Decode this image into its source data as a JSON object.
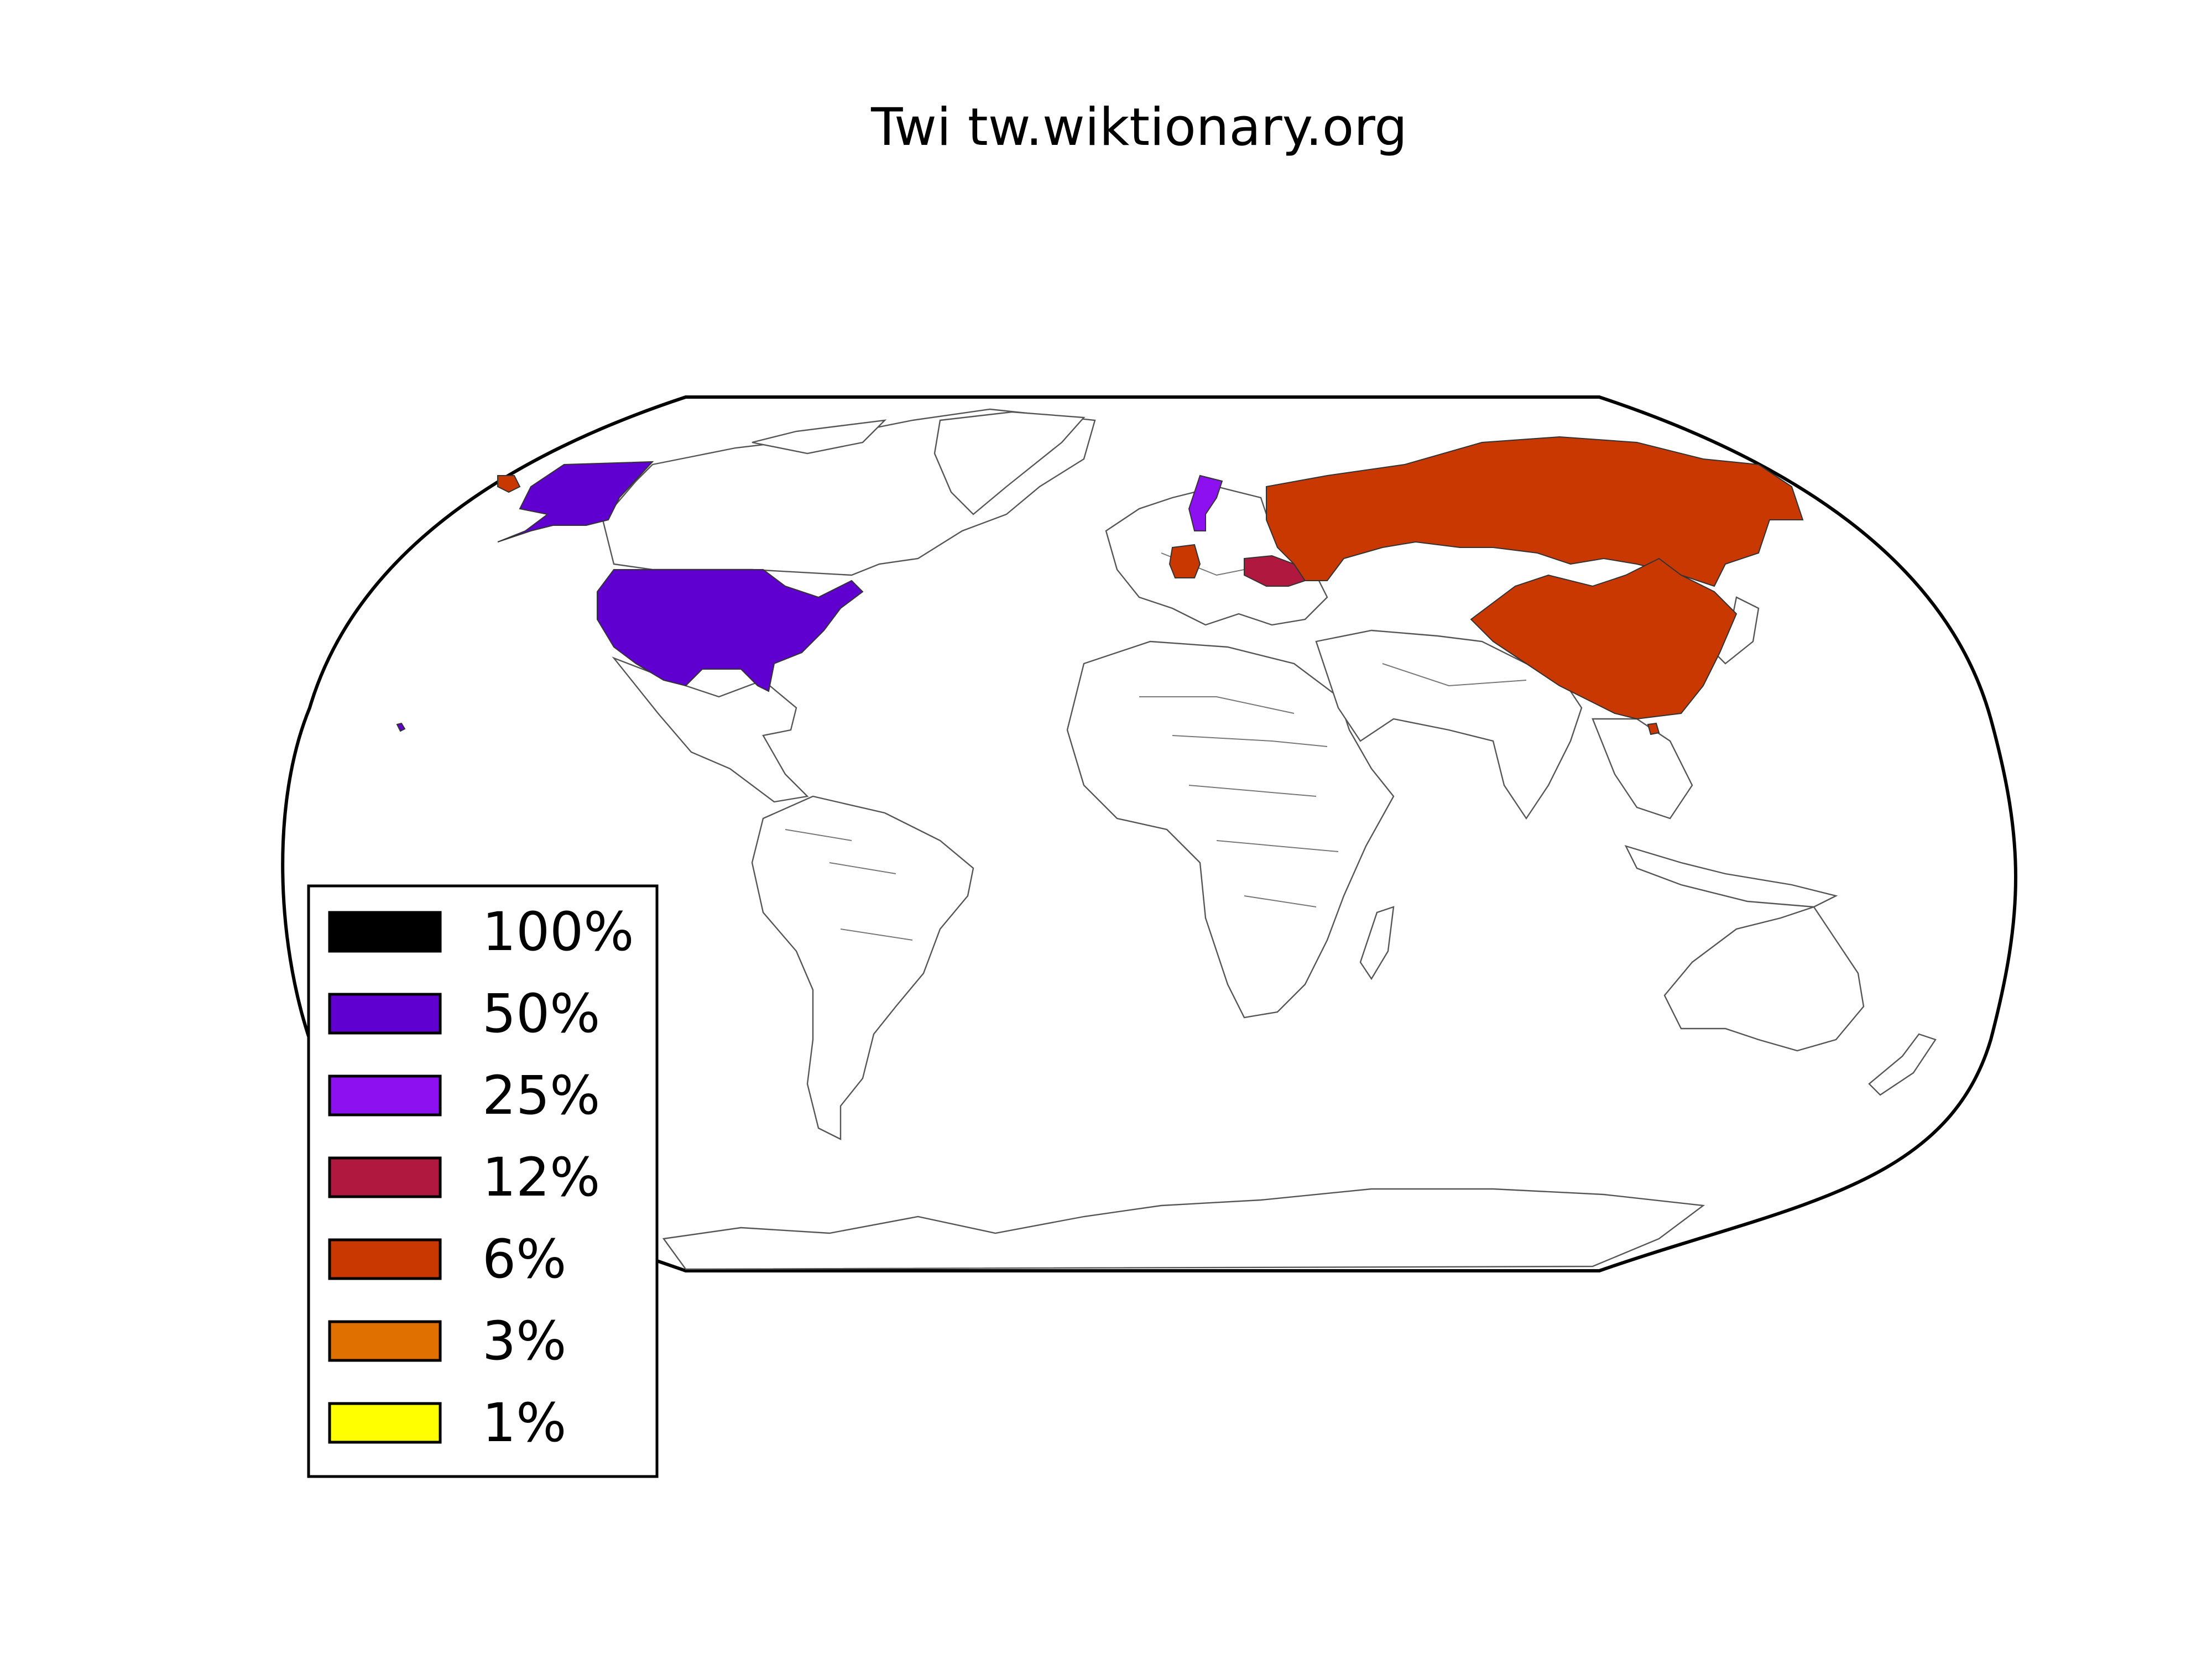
{
  "title": "Twi tw.wiktionary.org",
  "legend": [
    {
      "label": "100%",
      "color": "#000000"
    },
    {
      "label": "50%",
      "color": "#6000d0"
    },
    {
      "label": "25%",
      "color": "#8c10f0"
    },
    {
      "label": "12%",
      "color": "#b01840"
    },
    {
      "label": "6%",
      "color": "#c83800"
    },
    {
      "label": "3%",
      "color": "#e07000"
    },
    {
      "label": "1%",
      "color": "#ffff00"
    }
  ],
  "countries": [
    {
      "name": "United States",
      "share": "50%",
      "color": "#6000d0"
    },
    {
      "name": "Sweden",
      "share": "25%",
      "color": "#8c10f0"
    },
    {
      "name": "Ukraine",
      "share": "12%",
      "color": "#b01840"
    },
    {
      "name": "Russia",
      "share": "6%",
      "color": "#c83800"
    },
    {
      "name": "China",
      "share": "6%",
      "color": "#c83800"
    },
    {
      "name": "Germany",
      "share": "6%",
      "color": "#c83800"
    }
  ]
}
